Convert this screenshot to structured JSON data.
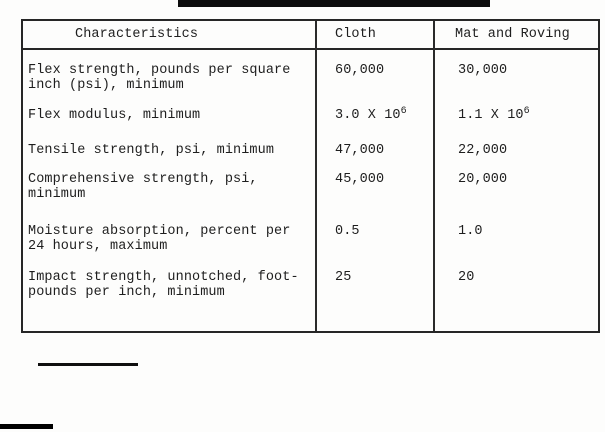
{
  "page": {
    "type": "scanned typewritten document table",
    "ink_color": "#1e1e1e",
    "rule_color": "#0d0d0d",
    "background_color": "#fdfdfc"
  },
  "table": {
    "columns": [
      "Characteristics",
      "Cloth",
      "Mat and Roving"
    ],
    "rows": [
      {
        "characteristic": "Flex strength, pounds per square\ninch (psi), minimum",
        "cloth": "60,000",
        "mat_and_roving": "30,000"
      },
      {
        "characteristic": "Flex modulus, minimum",
        "cloth": "3.0 X 10",
        "cloth_sup": "6",
        "mat_and_roving": "1.1 X 10",
        "mat_sup": "6"
      },
      {
        "characteristic": "Tensile strength, psi, minimum",
        "cloth": "47,000",
        "mat_and_roving": "22,000"
      },
      {
        "characteristic": "Comprehensive strength, psi,\nminimum",
        "cloth": "45,000",
        "mat_and_roving": "20,000"
      },
      {
        "characteristic": "Moisture absorption, percent per\n24 hours, maximum",
        "cloth": "0.5",
        "mat_and_roving": "1.0"
      },
      {
        "characteristic": "Impact strength, unnotched, foot-\npounds per inch, minimum",
        "cloth": "25",
        "mat_and_roving": "20"
      }
    ]
  }
}
